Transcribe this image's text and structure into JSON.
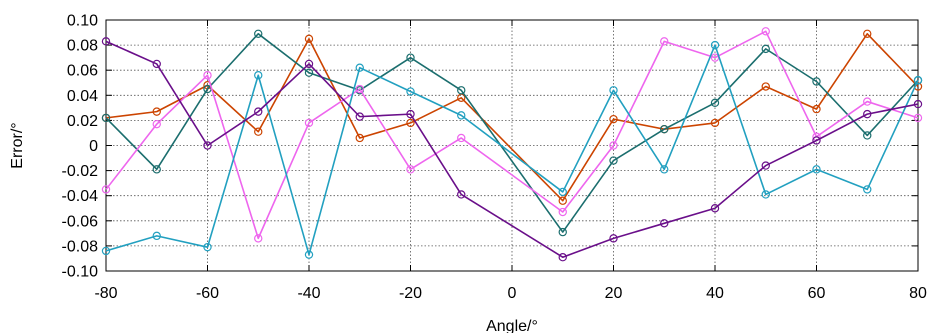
{
  "chart_data": {
    "type": "line",
    "xlabel": "Angle/°",
    "ylabel": "Error/°",
    "xlim": [
      -80,
      80
    ],
    "ylim": [
      -0.1,
      0.1
    ],
    "x_ticks": [
      "-80",
      "-60",
      "-40",
      "-20",
      "0",
      "20",
      "40",
      "60",
      "80"
    ],
    "y_ticks": [
      "0.10",
      "0.08",
      "0.06",
      "0.04",
      "0.02",
      "0",
      "-0.02",
      "-0.04",
      "-0.06",
      "-0.08",
      "-0.10"
    ],
    "grid": true,
    "x": [
      -80,
      -70,
      -60,
      -50,
      -40,
      -30,
      -20,
      -10,
      10,
      20,
      30,
      40,
      50,
      60,
      70,
      80
    ],
    "series": [
      {
        "color": "#cc4400",
        "values": [
          0.022,
          0.027,
          0.048,
          0.011,
          0.085,
          0.006,
          0.018,
          0.038,
          -0.044,
          0.021,
          0.013,
          0.018,
          0.047,
          0.029,
          0.089,
          0.047
        ]
      },
      {
        "color": "#1b6e6e",
        "values": [
          0.022,
          -0.019,
          0.045,
          0.089,
          0.058,
          0.044,
          0.07,
          0.044,
          -0.069,
          -0.012,
          0.013,
          0.034,
          0.077,
          0.051,
          0.008,
          0.052
        ]
      },
      {
        "color": "#ee66ee",
        "values": [
          -0.035,
          0.017,
          0.056,
          -0.074,
          0.018,
          0.045,
          -0.019,
          0.006,
          -0.053,
          0.0,
          0.083,
          0.07,
          0.091,
          0.007,
          0.035,
          0.022
        ]
      },
      {
        "color": "#22a0c0",
        "values": [
          -0.084,
          -0.072,
          -0.081,
          0.056,
          -0.087,
          0.062,
          0.043,
          0.024,
          -0.037,
          0.044,
          -0.019,
          0.08,
          -0.039,
          -0.019,
          -0.035,
          0.052
        ]
      },
      {
        "color": "#6a0f8a",
        "values": [
          0.083,
          0.065,
          0.0,
          0.027,
          0.065,
          0.023,
          0.025,
          -0.039,
          -0.089,
          -0.074,
          -0.062,
          -0.05,
          -0.016,
          0.004,
          0.025,
          0.033
        ]
      }
    ]
  }
}
